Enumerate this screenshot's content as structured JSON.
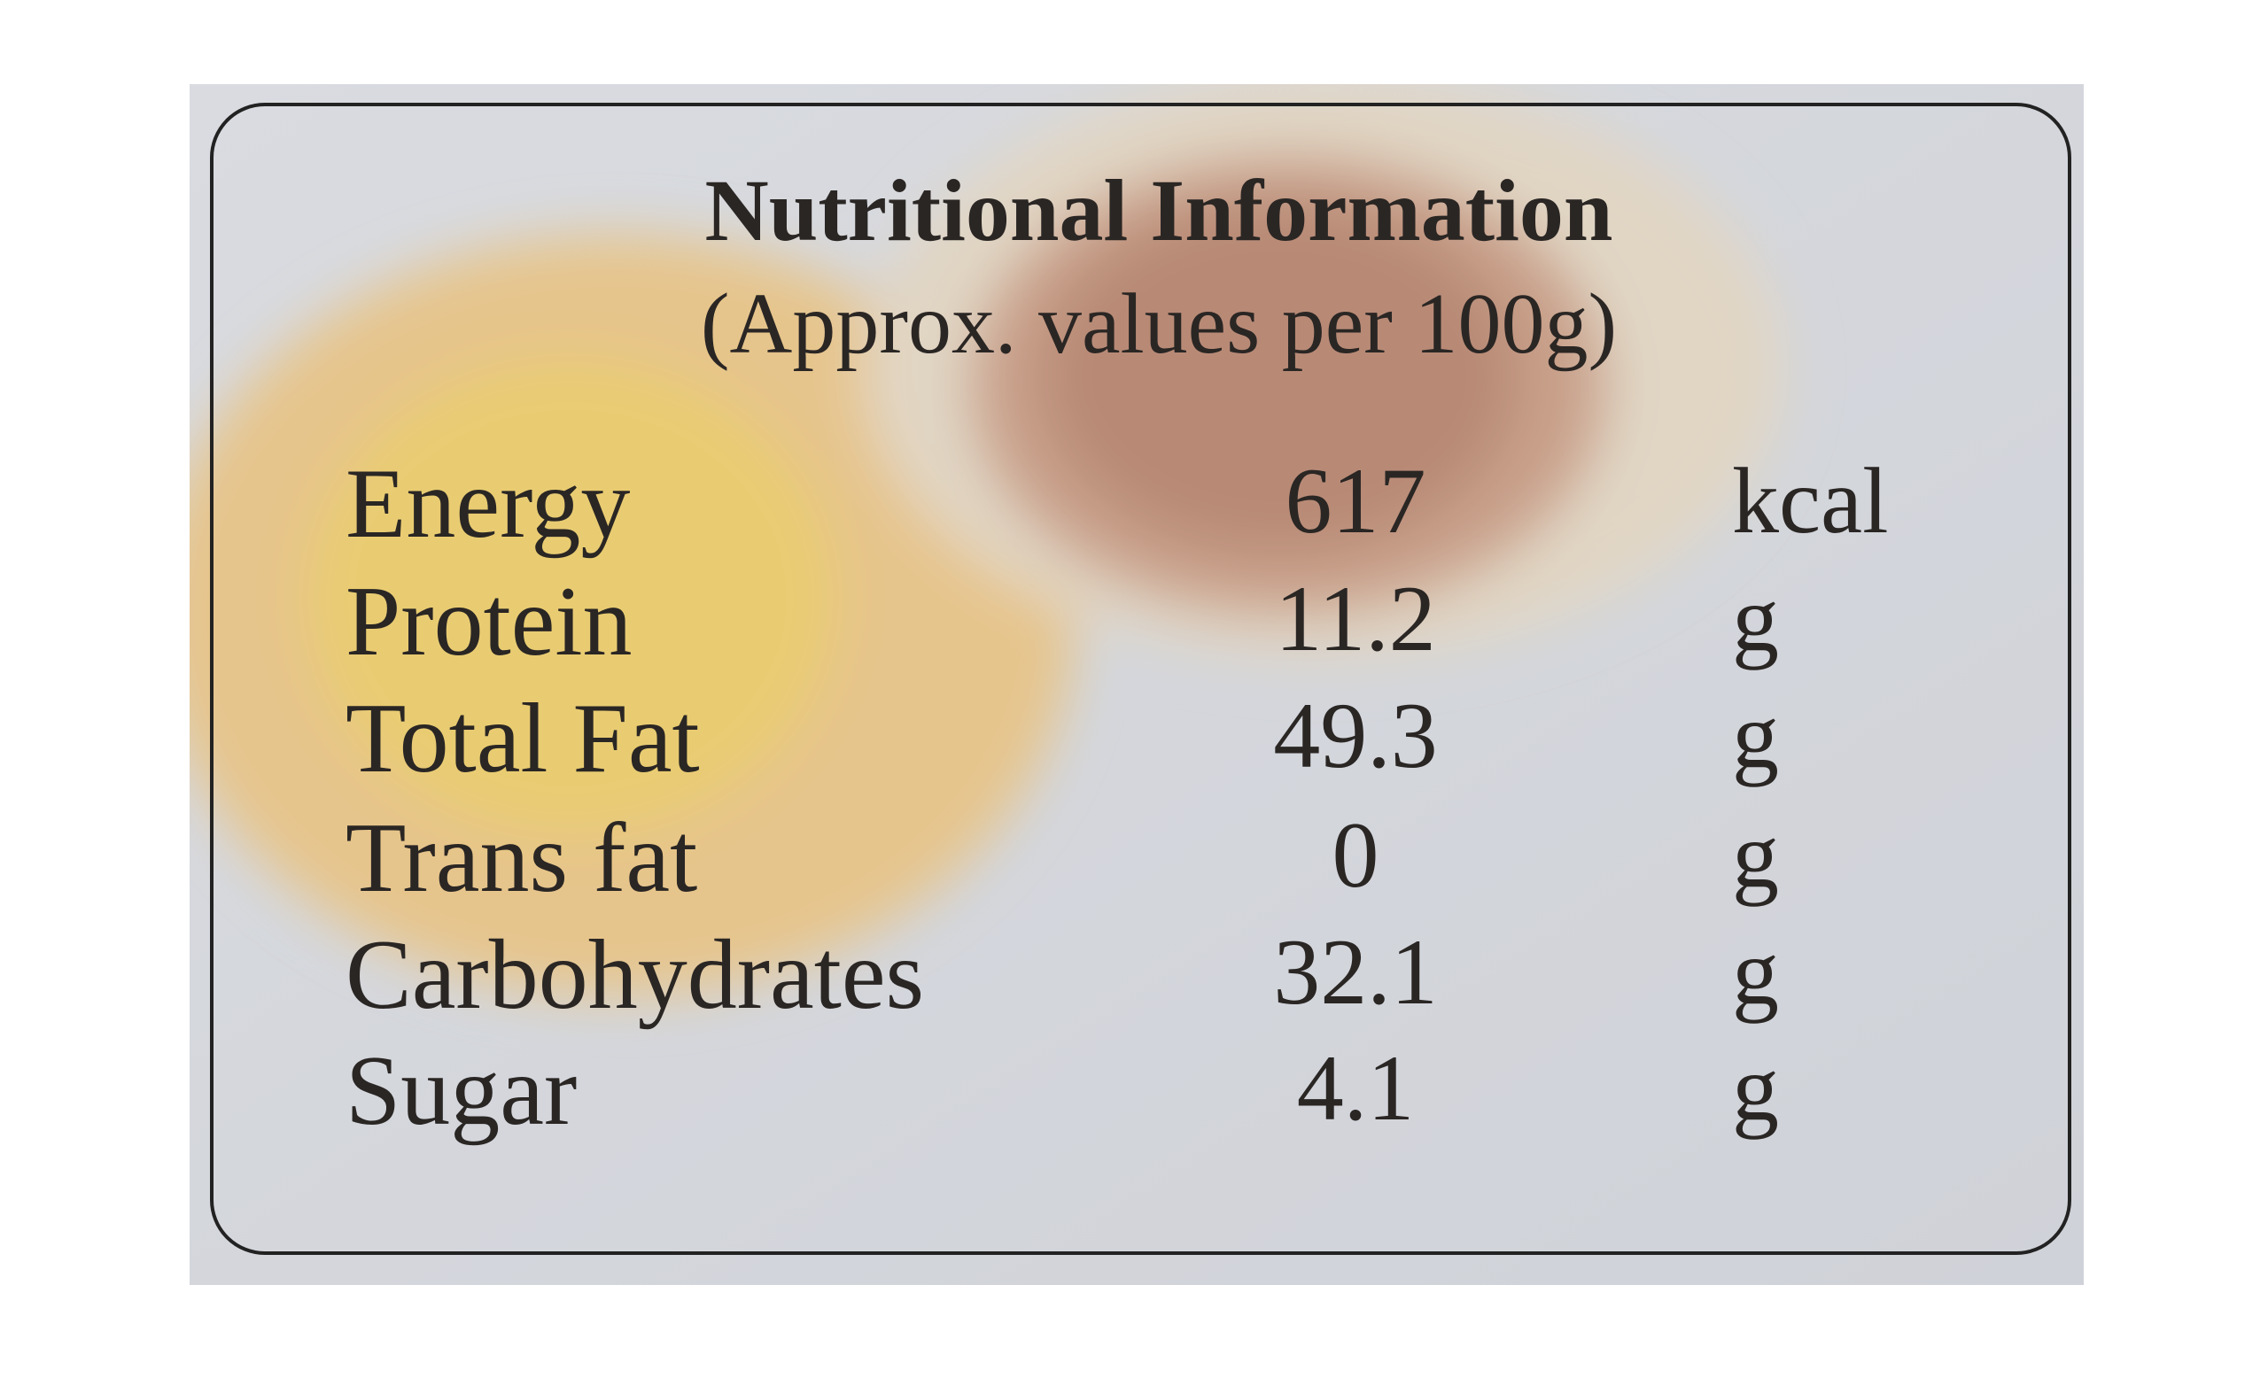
{
  "header": {
    "title": "Nutritional Information",
    "subtitle": "(Approx. values per 100g)"
  },
  "table": {
    "rows": [
      [
        "Energy",
        617,
        "kcal"
      ],
      [
        "Protein",
        11.2,
        "g"
      ],
      [
        "Total Fat",
        49.3,
        "g"
      ],
      [
        "Trans fat",
        0,
        "g"
      ],
      [
        "Carbohydrates",
        32.1,
        "g"
      ],
      [
        "Sugar",
        4.1,
        "g"
      ]
    ]
  }
}
